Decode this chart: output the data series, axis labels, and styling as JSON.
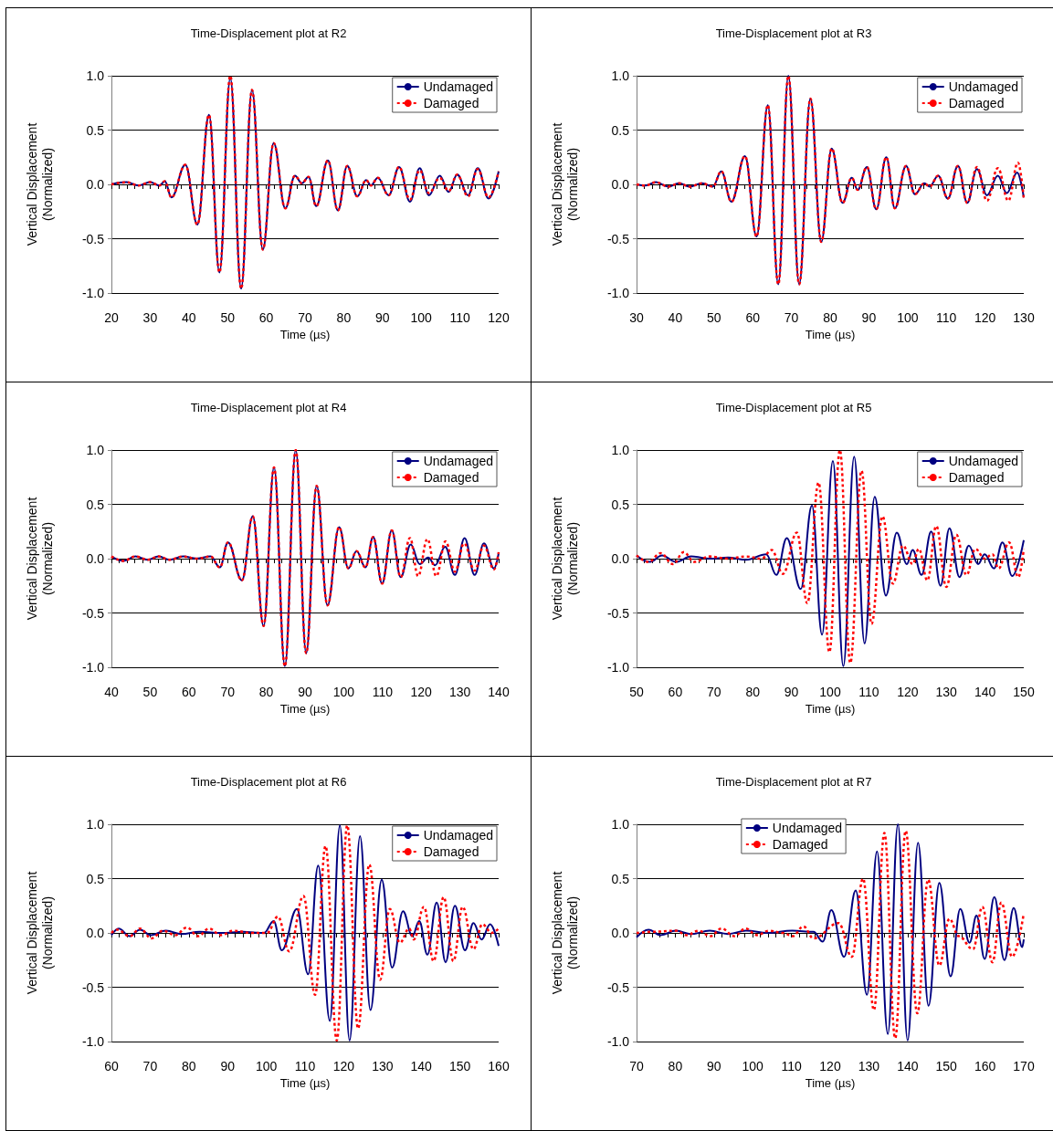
{
  "chart_data": [
    {
      "type": "line",
      "title": "Time-Displacement plot at R2",
      "xlabel": "Time (µs)",
      "ylabel": "Vertical Displacement\n(Normalized)",
      "xlim": [
        20,
        120
      ],
      "xticks": [
        20,
        30,
        40,
        50,
        60,
        70,
        80,
        90,
        100,
        110,
        120
      ],
      "ylim": [
        -1,
        1
      ],
      "yticks": [
        {
          "value": -1,
          "label": "-1.0"
        },
        {
          "value": -0.5,
          "label": "-0.5"
        },
        {
          "value": 0,
          "label": "0.0"
        },
        {
          "value": 0.5,
          "label": "0.5"
        },
        {
          "value": 1,
          "label": "1.0"
        }
      ],
      "grid": "y",
      "legend": "top right",
      "series": [
        {
          "name": "Undamaged",
          "color": "#000080",
          "line_style": "solid",
          "x": [
            20,
            23.9,
            27,
            30,
            32.4,
            33.8,
            35.5,
            39.1,
            42.2,
            45.2,
            47.9,
            50.7,
            53.5,
            56.3,
            59.1,
            61.9,
            64.9,
            67.4,
            69.2,
            70.9,
            72.9,
            75.9,
            78.5,
            80.9,
            83.5,
            85.8,
            87,
            88.8,
            91.6,
            94.3,
            97.1,
            99.6,
            102,
            104.8,
            107.1,
            109.3,
            112.1,
            114.6,
            117.4,
            120
          ],
          "values": [
            0,
            0.02,
            -0.01,
            0.02,
            -0.01,
            0.03,
            -0.12,
            0.18,
            -0.37,
            0.64,
            -0.81,
            0.98,
            -0.96,
            0.87,
            -0.6,
            0.38,
            -0.22,
            0.08,
            0.01,
            0.07,
            -0.2,
            0.22,
            -0.24,
            0.17,
            -0.11,
            0.04,
            -0.01,
            0.06,
            -0.1,
            0.16,
            -0.16,
            0.15,
            -0.1,
            0.08,
            -0.07,
            0.09,
            -0.1,
            0.15,
            -0.13,
            0.12
          ]
        },
        {
          "name": "Damaged",
          "color": "#ff0000",
          "line_style": "dashed",
          "x": [
            20,
            23.9,
            27,
            30,
            32.4,
            33.8,
            35.5,
            39.1,
            42.2,
            45.2,
            47.9,
            50.7,
            53.5,
            56.3,
            59.1,
            61.9,
            64.9,
            67.4,
            69.2,
            70.9,
            72.9,
            75.9,
            78.5,
            80.9,
            83.5,
            85.8,
            87,
            88.8,
            91.6,
            94.3,
            97.1,
            99.6,
            102,
            104.8,
            107.1,
            109.3,
            112.1,
            114.6,
            117.4,
            120
          ],
          "values": [
            0,
            0.02,
            -0.01,
            0.02,
            -0.01,
            0.03,
            -0.12,
            0.18,
            -0.37,
            0.64,
            -0.81,
            1.0,
            -0.96,
            0.87,
            -0.6,
            0.38,
            -0.22,
            0.08,
            0.01,
            0.07,
            -0.2,
            0.22,
            -0.24,
            0.17,
            -0.11,
            0.04,
            -0.01,
            0.06,
            -0.1,
            0.16,
            -0.14,
            0.13,
            -0.08,
            0.06,
            -0.06,
            0.09,
            -0.11,
            0.14,
            -0.12,
            0.12
          ]
        }
      ]
    },
    {
      "type": "line",
      "title": "Time-Displacement plot at R3",
      "xlabel": "Time (µs)",
      "ylabel": "Vertical Displacement\n(Normalized)",
      "xlim": [
        30,
        130
      ],
      "xticks": [
        30,
        40,
        50,
        60,
        70,
        80,
        90,
        100,
        110,
        120,
        130
      ],
      "ylim": [
        -1,
        1
      ],
      "yticks": [
        {
          "value": -1,
          "label": "-1.0"
        },
        {
          "value": -0.5,
          "label": "-0.5"
        },
        {
          "value": 0,
          "label": "0.0"
        },
        {
          "value": 0.5,
          "label": "0.5"
        },
        {
          "value": 1,
          "label": "1.0"
        }
      ],
      "grid": "y",
      "legend": "top right",
      "series": [
        {
          "name": "Undamaged",
          "color": "#000080",
          "line_style": "solid",
          "x": [
            30,
            32.3,
            35,
            38.2,
            41,
            43.7,
            46.9,
            49.7,
            51.9,
            54.5,
            58,
            61,
            63.9,
            66.6,
            69.2,
            72,
            74.9,
            77.7,
            80.4,
            83.2,
            85.6,
            87.1,
            89.5,
            91.9,
            94.5,
            96.7,
            99.6,
            101.9,
            104.3,
            105.7,
            107.9,
            110.4,
            113,
            115.4,
            117.9,
            120.5,
            123.3,
            125.6,
            128.3,
            130
          ],
          "values": [
            0,
            -0.01,
            0.02,
            -0.02,
            0.01,
            -0.02,
            0.01,
            -0.02,
            0.12,
            -0.16,
            0.26,
            -0.48,
            0.73,
            -0.92,
            1.0,
            -0.92,
            0.79,
            -0.53,
            0.33,
            -0.17,
            0.06,
            -0.05,
            0.16,
            -0.23,
            0.25,
            -0.22,
            0.17,
            -0.09,
            0.01,
            -0.02,
            0.08,
            -0.13,
            0.17,
            -0.17,
            0.14,
            -0.1,
            0.08,
            -0.08,
            0.11,
            -0.12
          ]
        },
        {
          "name": "Damaged",
          "color": "#ff0000",
          "line_style": "dashed",
          "x": [
            30,
            32.3,
            35,
            38.2,
            41,
            43.7,
            46.9,
            49.7,
            51.9,
            54.5,
            58,
            61,
            63.9,
            66.6,
            69.2,
            72,
            74.9,
            77.7,
            80.4,
            83.2,
            85.6,
            87.1,
            89.5,
            91.9,
            94.5,
            96.7,
            99.6,
            101.9,
            104.3,
            105.7,
            107.9,
            110.4,
            113,
            115.4,
            117.9,
            120.5,
            123.3,
            126,
            128.5,
            130
          ],
          "values": [
            0,
            -0.01,
            0.02,
            -0.02,
            0.01,
            -0.02,
            0.01,
            -0.02,
            0.12,
            -0.16,
            0.26,
            -0.48,
            0.73,
            -0.92,
            1.0,
            -0.92,
            0.79,
            -0.53,
            0.33,
            -0.17,
            0.06,
            -0.05,
            0.16,
            -0.23,
            0.25,
            -0.22,
            0.17,
            -0.09,
            0.01,
            -0.02,
            0.08,
            -0.13,
            0.17,
            -0.17,
            0.16,
            -0.15,
            0.15,
            -0.15,
            0.2,
            -0.13
          ]
        }
      ]
    },
    {
      "type": "line",
      "title": "Time-Displacement plot at R4",
      "xlabel": "Time (µs)",
      "ylabel": "Vertical Displacement\n(Normalized)",
      "xlim": [
        40,
        140
      ],
      "xticks": [
        40,
        50,
        60,
        70,
        80,
        90,
        100,
        110,
        120,
        130,
        140
      ],
      "ylim": [
        -1,
        1
      ],
      "yticks": [
        {
          "value": -1,
          "label": "-1.0"
        },
        {
          "value": -0.5,
          "label": "-0.5"
        },
        {
          "value": 0,
          "label": "0.0"
        },
        {
          "value": 0.5,
          "label": "0.5"
        },
        {
          "value": 1,
          "label": "1.0"
        }
      ],
      "grid": "y",
      "legend": "top right",
      "series": [
        {
          "name": "Undamaged",
          "color": "#000080",
          "line_style": "solid",
          "x": [
            40,
            43.1,
            46.2,
            49.4,
            52.2,
            55,
            58.5,
            62,
            65.6,
            68,
            70.1,
            73.7,
            76.5,
            79.3,
            82,
            84.8,
            87.6,
            90.3,
            93,
            95.8,
            98.8,
            101.2,
            103.3,
            105.6,
            107.6,
            109.9,
            112.4,
            114.7,
            117.3,
            119.6,
            121.8,
            123.6,
            126.2,
            128.7,
            131.2,
            133.8,
            136.2,
            138.8,
            140
          ],
          "values": [
            0.02,
            -0.02,
            0.02,
            -0.01,
            0.02,
            -0.01,
            0.02,
            0,
            0.02,
            -0.08,
            0.15,
            -0.2,
            0.39,
            -0.62,
            0.84,
            -0.99,
            1.0,
            -0.87,
            0.67,
            -0.43,
            0.29,
            -0.09,
            0.07,
            -0.08,
            0.2,
            -0.23,
            0.26,
            -0.17,
            0.13,
            -0.05,
            0.01,
            -0.06,
            0.11,
            -0.15,
            0.19,
            -0.15,
            0.14,
            -0.09,
            0.05
          ]
        },
        {
          "name": "Damaged",
          "color": "#ff0000",
          "line_style": "dashed",
          "x": [
            40,
            43.1,
            46.2,
            49.4,
            52.2,
            55,
            58.5,
            62,
            65.6,
            68,
            70.1,
            73.7,
            76.5,
            79.3,
            82,
            84.8,
            87.6,
            90.3,
            93,
            95.8,
            98.8,
            101.2,
            103.3,
            105.6,
            107.6,
            109.9,
            112.4,
            114.7,
            117.1,
            119.2,
            121.6,
            123.9,
            126.3,
            128.7,
            131.1,
            133.8,
            136.2,
            138.8,
            140
          ],
          "values": [
            0.02,
            -0.02,
            0.02,
            -0.01,
            0.02,
            -0.01,
            0.02,
            0,
            0.02,
            -0.08,
            0.15,
            -0.2,
            0.39,
            -0.62,
            0.84,
            -0.99,
            1.0,
            -0.87,
            0.67,
            -0.43,
            0.29,
            -0.09,
            0.07,
            -0.08,
            0.2,
            -0.23,
            0.26,
            -0.17,
            0.19,
            -0.16,
            0.18,
            -0.16,
            0.16,
            -0.12,
            0.14,
            -0.11,
            0.12,
            -0.1,
            0.06
          ]
        }
      ]
    },
    {
      "type": "line",
      "title": "Time-Displacement plot at R5",
      "xlabel": "Time (µs)",
      "ylabel": "Vertical Displacement\n(Normalized)",
      "xlim": [
        50,
        150
      ],
      "xticks": [
        50,
        60,
        70,
        80,
        90,
        100,
        110,
        120,
        130,
        140,
        150
      ],
      "ylim": [
        -1,
        1
      ],
      "yticks": [
        {
          "value": -1,
          "label": "-1.0"
        },
        {
          "value": -0.5,
          "label": "-0.5"
        },
        {
          "value": 0,
          "label": "0.0"
        },
        {
          "value": 0.5,
          "label": "0.5"
        },
        {
          "value": 1,
          "label": "1.0"
        }
      ],
      "grid": "y",
      "legend": "top right",
      "series": [
        {
          "name": "Undamaged",
          "color": "#000080",
          "line_style": "solid",
          "x": [
            50,
            53.5,
            56.6,
            60.2,
            64.1,
            68.9,
            73.6,
            78.3,
            83.5,
            86.1,
            88.8,
            92.4,
            95.3,
            97.9,
            100.7,
            103.4,
            106.2,
            108.9,
            111.5,
            114.4,
            117.2,
            119.8,
            121.3,
            123.6,
            126.1,
            128.5,
            130.8,
            133.4,
            135.8,
            138.2,
            139.9,
            142.3,
            144.5,
            147,
            150
          ],
          "values": [
            0.03,
            -0.03,
            0.03,
            -0.03,
            0.02,
            0,
            0.01,
            -0.01,
            0.04,
            -0.15,
            0.19,
            -0.28,
            0.49,
            -0.7,
            0.9,
            -0.99,
            0.94,
            -0.78,
            0.57,
            -0.34,
            0.24,
            -0.05,
            0.08,
            -0.15,
            0.25,
            -0.25,
            0.28,
            -0.17,
            0.12,
            -0.05,
            0.04,
            -0.09,
            0.15,
            -0.16,
            0.17
          ]
        },
        {
          "name": "Damaged",
          "color": "#ff0000",
          "line_style": "dashed",
          "x": [
            50,
            53.1,
            56.2,
            59.4,
            62.2,
            64.9,
            68.9,
            73.6,
            78.3,
            82.3,
            84.9,
            87.8,
            91.4,
            94.1,
            97,
            99.8,
            102.5,
            105.2,
            108.1,
            110.7,
            113.5,
            116.2,
            118.8,
            121.3,
            122.9,
            125.1,
            127.4,
            130,
            132.6,
            135.2,
            137.5,
            139.9,
            141.9,
            143.5,
            146.2,
            148.6,
            150
          ],
          "values": [
            0.03,
            -0.03,
            0.05,
            -0.05,
            0.06,
            -0.03,
            0.02,
            0,
            0.02,
            0,
            0.08,
            -0.14,
            0.24,
            -0.41,
            0.7,
            -0.86,
            1.0,
            -0.96,
            0.81,
            -0.6,
            0.39,
            -0.23,
            0.12,
            -0.05,
            0.09,
            -0.2,
            0.3,
            -0.26,
            0.22,
            -0.15,
            0.09,
            0,
            0.04,
            -0.09,
            0.15,
            -0.17,
            0.09
          ]
        }
      ]
    },
    {
      "type": "line",
      "title": "Time-Displacement plot at R6",
      "xlabel": "Time (µs)",
      "ylabel": "Vertical Displacement\n(Normalized)",
      "xlim": [
        60,
        160
      ],
      "xticks": [
        60,
        70,
        80,
        90,
        100,
        110,
        120,
        130,
        140,
        150,
        160
      ],
      "ylim": [
        -1,
        1
      ],
      "yticks": [
        {
          "value": -1,
          "label": "-1.0"
        },
        {
          "value": -0.5,
          "label": "-0.5"
        },
        {
          "value": 0,
          "label": "0.0"
        },
        {
          "value": 0.5,
          "label": "0.5"
        },
        {
          "value": 1,
          "label": "1.0"
        }
      ],
      "grid": "y",
      "legend": "top right",
      "series": [
        {
          "name": "Undamaged",
          "color": "#000080",
          "line_style": "solid",
          "x": [
            60,
            61.9,
            64.7,
            67.4,
            70.2,
            74.1,
            78.1,
            82.8,
            88.3,
            93.9,
            99.4,
            101.9,
            104,
            107.9,
            110.8,
            113.4,
            116.4,
            119,
            121.5,
            124.2,
            126.9,
            129.8,
            132.5,
            135.3,
            137.7,
            139.5,
            141.6,
            144,
            146.3,
            148.7,
            151.3,
            153.5,
            155.6,
            157.8,
            160
          ],
          "values": [
            -0.02,
            0.04,
            -0.03,
            0.03,
            -0.02,
            0.02,
            -0.01,
            0.01,
            0,
            0.01,
            0,
            0.11,
            -0.16,
            0.22,
            -0.38,
            0.62,
            -0.81,
            0.99,
            -0.99,
            0.89,
            -0.71,
            0.49,
            -0.32,
            0.2,
            -0.03,
            0.11,
            -0.2,
            0.28,
            -0.27,
            0.25,
            -0.16,
            0.09,
            -0.06,
            0.08,
            -0.12
          ]
        },
        {
          "name": "Damaged",
          "color": "#ff0000",
          "line_style": "dashed",
          "x": [
            60,
            61.5,
            64.7,
            67.4,
            70.3,
            73.3,
            76.5,
            79.5,
            82.4,
            85.2,
            88.3,
            91.5,
            96.2,
            100.2,
            103,
            105.9,
            109.6,
            112.6,
            115.3,
            118.2,
            120.9,
            123.7,
            126.6,
            129.4,
            131.9,
            134.5,
            136.9,
            138.1,
            140.7,
            143.2,
            145.8,
            148.3,
            150.7,
            153.5,
            155.8,
            158.2,
            160
          ],
          "values": [
            0,
            0.03,
            -0.03,
            0.04,
            -0.05,
            0.02,
            -0.02,
            0.05,
            -0.03,
            0.04,
            -0.02,
            0.02,
            0,
            0,
            0.15,
            -0.17,
            0.34,
            -0.57,
            0.8,
            -0.99,
            0.99,
            -0.88,
            0.63,
            -0.43,
            0.22,
            -0.09,
            0.04,
            -0.06,
            0.24,
            -0.26,
            0.33,
            -0.26,
            0.24,
            -0.15,
            0.08,
            0,
            0.04
          ]
        }
      ]
    },
    {
      "type": "line",
      "title": "Time-Displacement plot at R7",
      "xlabel": "Time (µs)",
      "ylabel": "Vertical Displacement\n(Normalized)",
      "xlim": [
        70,
        170
      ],
      "xticks": [
        70,
        80,
        90,
        100,
        110,
        120,
        130,
        140,
        150,
        160,
        170
      ],
      "ylim": [
        -1,
        1
      ],
      "yticks": [
        {
          "value": -1,
          "label": "-1.0"
        },
        {
          "value": -0.5,
          "label": "-0.5"
        },
        {
          "value": 0,
          "label": "0.0"
        },
        {
          "value": 0.5,
          "label": "0.5"
        },
        {
          "value": 1,
          "label": "1.0"
        }
      ],
      "grid": "y",
      "legend": "top",
      "series": [
        {
          "name": "Undamaged",
          "color": "#000080",
          "line_style": "solid",
          "x": [
            70,
            73.1,
            76.2,
            80.2,
            84.1,
            88.9,
            93.6,
            98.3,
            103.9,
            110.2,
            115.7,
            118.1,
            120.3,
            123.6,
            126.6,
            129.5,
            132.1,
            134.9,
            137.5,
            140,
            142.7,
            145.4,
            148.2,
            151.1,
            153.6,
            156,
            157.8,
            159.9,
            162.4,
            165,
            167.4,
            169.6,
            170
          ],
          "values": [
            -0.04,
            0.03,
            -0.02,
            0.02,
            -0.01,
            0.02,
            -0.01,
            0.02,
            0,
            0.02,
            0.01,
            -0.08,
            0.21,
            -0.22,
            0.39,
            -0.57,
            0.75,
            -0.93,
            1.0,
            -0.99,
            0.83,
            -0.67,
            0.46,
            -0.4,
            0.22,
            -0.09,
            0.16,
            -0.24,
            0.33,
            -0.25,
            0.23,
            -0.13,
            -0.06
          ]
        },
        {
          "name": "Damaged",
          "color": "#ff0000",
          "line_style": "dashed",
          "x": [
            70,
            73.9,
            80.2,
            82.9,
            86.1,
            89,
            92,
            95.2,
            98.2,
            101.1,
            104.3,
            107.8,
            110.3,
            113.1,
            115.7,
            122.2,
            125.6,
            128.5,
            131.3,
            134,
            136.8,
            139.5,
            142.5,
            145.3,
            148.2,
            150.8,
            153.2,
            156.9,
            159.3,
            161.9,
            164.2,
            167,
            170
          ],
          "values": [
            0,
            0.01,
            0.02,
            -0.02,
            0.02,
            -0.03,
            0.04,
            -0.03,
            0.04,
            -0.02,
            0.02,
            0,
            -0.03,
            0.06,
            -0.05,
            0.09,
            -0.22,
            0.5,
            -0.71,
            0.92,
            -0.97,
            0.94,
            -0.74,
            0.49,
            -0.3,
            0.13,
            -0.03,
            -0.15,
            0.24,
            -0.27,
            0.28,
            -0.22,
            0.18
          ]
        }
      ]
    }
  ]
}
